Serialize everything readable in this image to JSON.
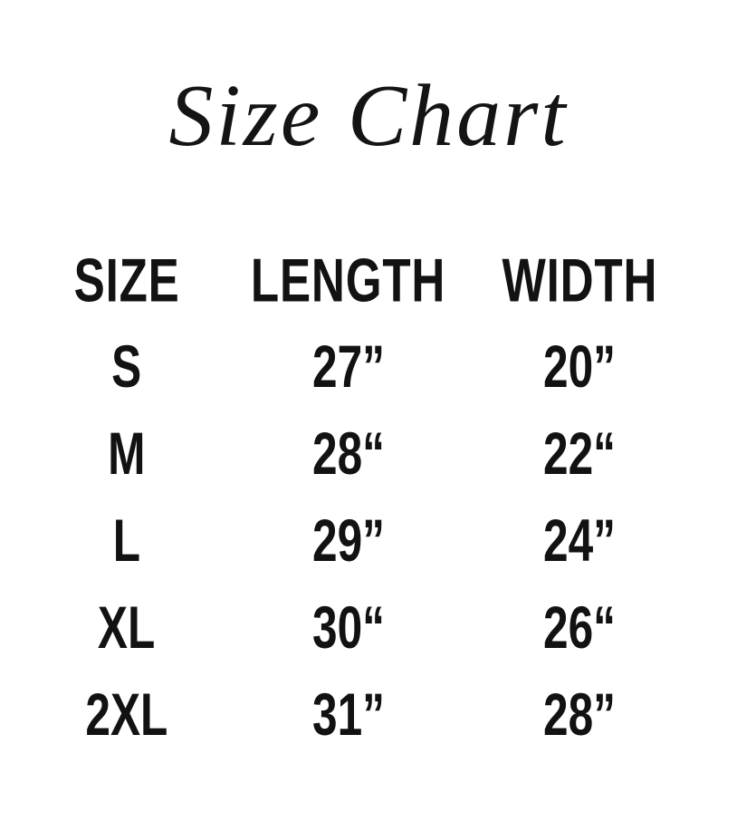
{
  "page": {
    "background_color": "#ffffff",
    "text_color": "#121212"
  },
  "title": "Size Chart",
  "table": {
    "headers": [
      "SIZE",
      "LENGTH",
      "WIDTH"
    ],
    "rows": [
      {
        "size": "S",
        "length": "27”",
        "width": "20”"
      },
      {
        "size": "M",
        "length": "28“",
        "width": "22“"
      },
      {
        "size": "L",
        "length": "29”",
        "width": "24”"
      },
      {
        "size": "XL",
        "length": "30“",
        "width": "26“"
      },
      {
        "size": "2XL",
        "length": "31”",
        "width": "28”"
      }
    ]
  },
  "chart_data": {
    "type": "table",
    "title": "Size Chart",
    "columns": [
      "SIZE",
      "LENGTH",
      "WIDTH"
    ],
    "rows": [
      [
        "S",
        "27\"",
        "20\""
      ],
      [
        "M",
        "28\"",
        "22\""
      ],
      [
        "L",
        "29\"",
        "24\""
      ],
      [
        "XL",
        "30\"",
        "26\""
      ],
      [
        "2XL",
        "31\"",
        "28\""
      ]
    ],
    "units": "inches",
    "length_values": [
      27,
      28,
      29,
      30,
      31
    ],
    "width_values": [
      20,
      22,
      24,
      26,
      28
    ]
  }
}
